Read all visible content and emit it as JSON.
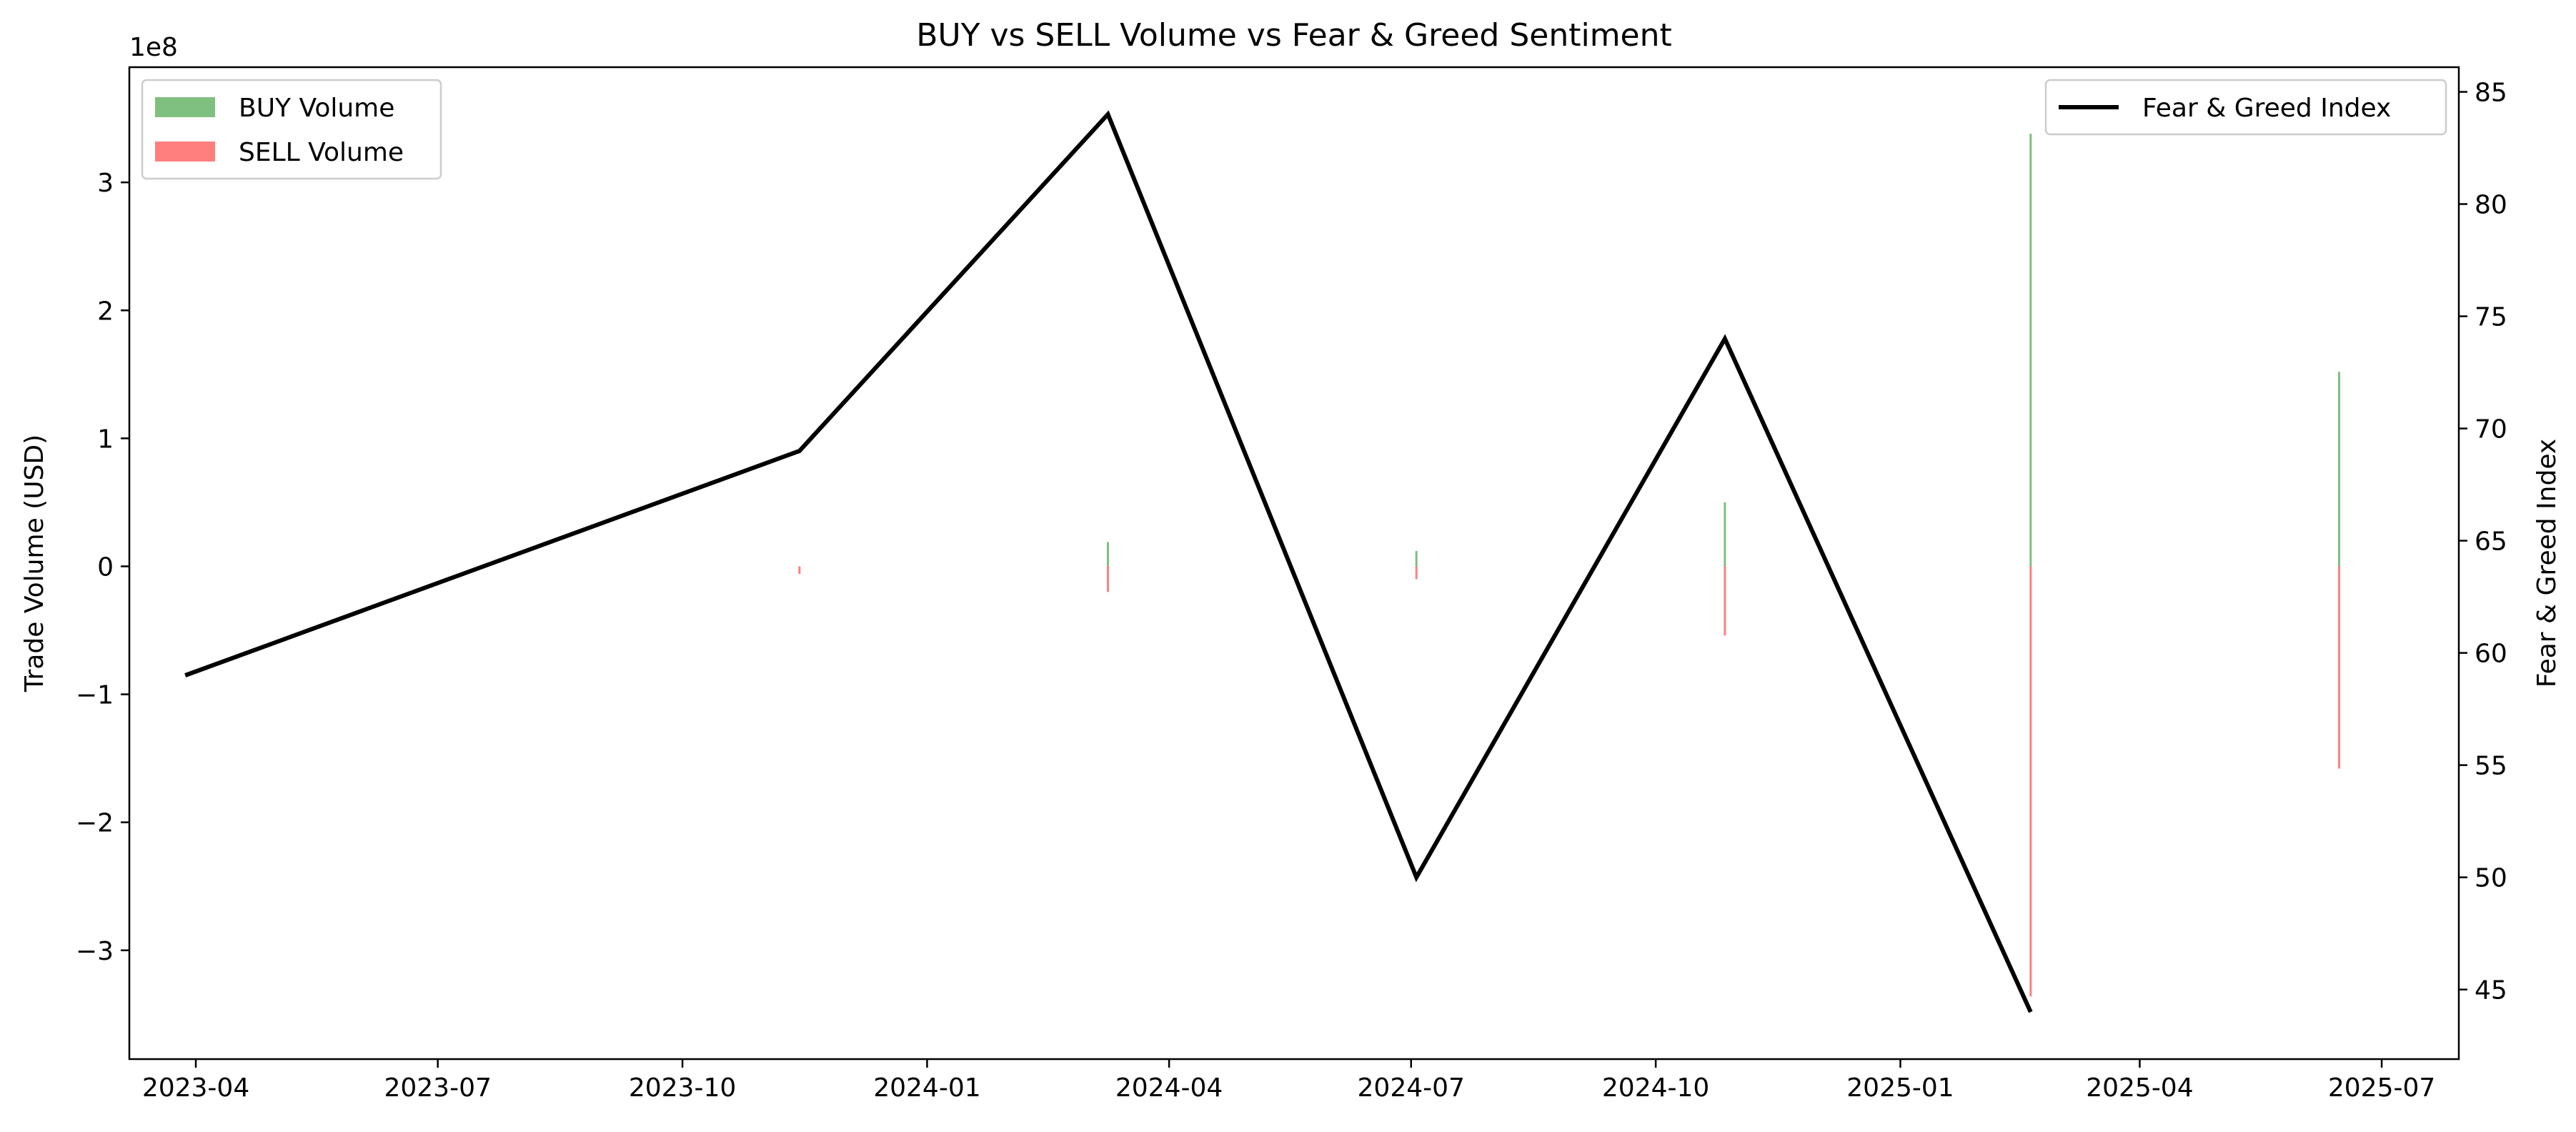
{
  "chart_data": {
    "type": "bar",
    "title": "BUY vs SELL Volume vs Fear & Greed Sentiment",
    "ylabel": "Trade Volume (USD)",
    "y2label": "Fear & Greed Index",
    "y_scale_label": "1e8",
    "ylim": [
      -3.85,
      3.9
    ],
    "y_ticks": [
      -3,
      -2,
      -1,
      0,
      1,
      2,
      3
    ],
    "y_tick_labels": [
      "−3",
      "−2",
      "−1",
      "0",
      "1",
      "2",
      "3"
    ],
    "y2lim": [
      41.9,
      86.1
    ],
    "y2_ticks": [
      45,
      50,
      55,
      60,
      65,
      70,
      75,
      80,
      85
    ],
    "y2_tick_labels": [
      "45",
      "50",
      "55",
      "60",
      "65",
      "70",
      "75",
      "80",
      "85"
    ],
    "xlim": [
      "2023-03-07",
      "2025-07-30"
    ],
    "x_ticks": [
      "2023-04-01",
      "2023-07-01",
      "2023-10-01",
      "2024-01-01",
      "2024-04-01",
      "2024-07-01",
      "2024-10-01",
      "2025-01-01",
      "2025-04-01",
      "2025-07-01"
    ],
    "x_tick_labels": [
      "2023-04",
      "2023-07",
      "2023-10",
      "2024-01",
      "2024-04",
      "2024-07",
      "2024-10",
      "2025-01",
      "2025-04",
      "2025-07"
    ],
    "x": [
      "2023-03-28",
      "2023-11-14",
      "2024-03-09",
      "2024-07-03",
      "2024-10-27",
      "2025-02-19",
      "2025-06-15"
    ],
    "series": [
      {
        "name": "BUY Volume",
        "kind": "bar",
        "color": "#008000",
        "opacity": 0.5,
        "values": [
          0,
          0.0,
          0.19,
          0.12,
          0.5,
          3.38,
          1.52
        ]
      },
      {
        "name": "SELL Volume",
        "kind": "bar",
        "color": "#ff0000",
        "opacity": 0.5,
        "values": [
          0,
          -0.06,
          -0.2,
          -0.1,
          -0.54,
          -3.36,
          -1.58
        ]
      },
      {
        "name": "Fear & Greed Index",
        "kind": "line",
        "axis": "right",
        "color": "#000000",
        "values": [
          59,
          69,
          84,
          50,
          74,
          44,
          null
        ]
      }
    ],
    "legend_left": {
      "placement": "top-left",
      "entries": [
        "BUY Volume",
        "SELL Volume"
      ]
    },
    "legend_right": {
      "placement": "top-right",
      "entries": [
        "Fear & Greed Index"
      ]
    },
    "grid": false
  }
}
